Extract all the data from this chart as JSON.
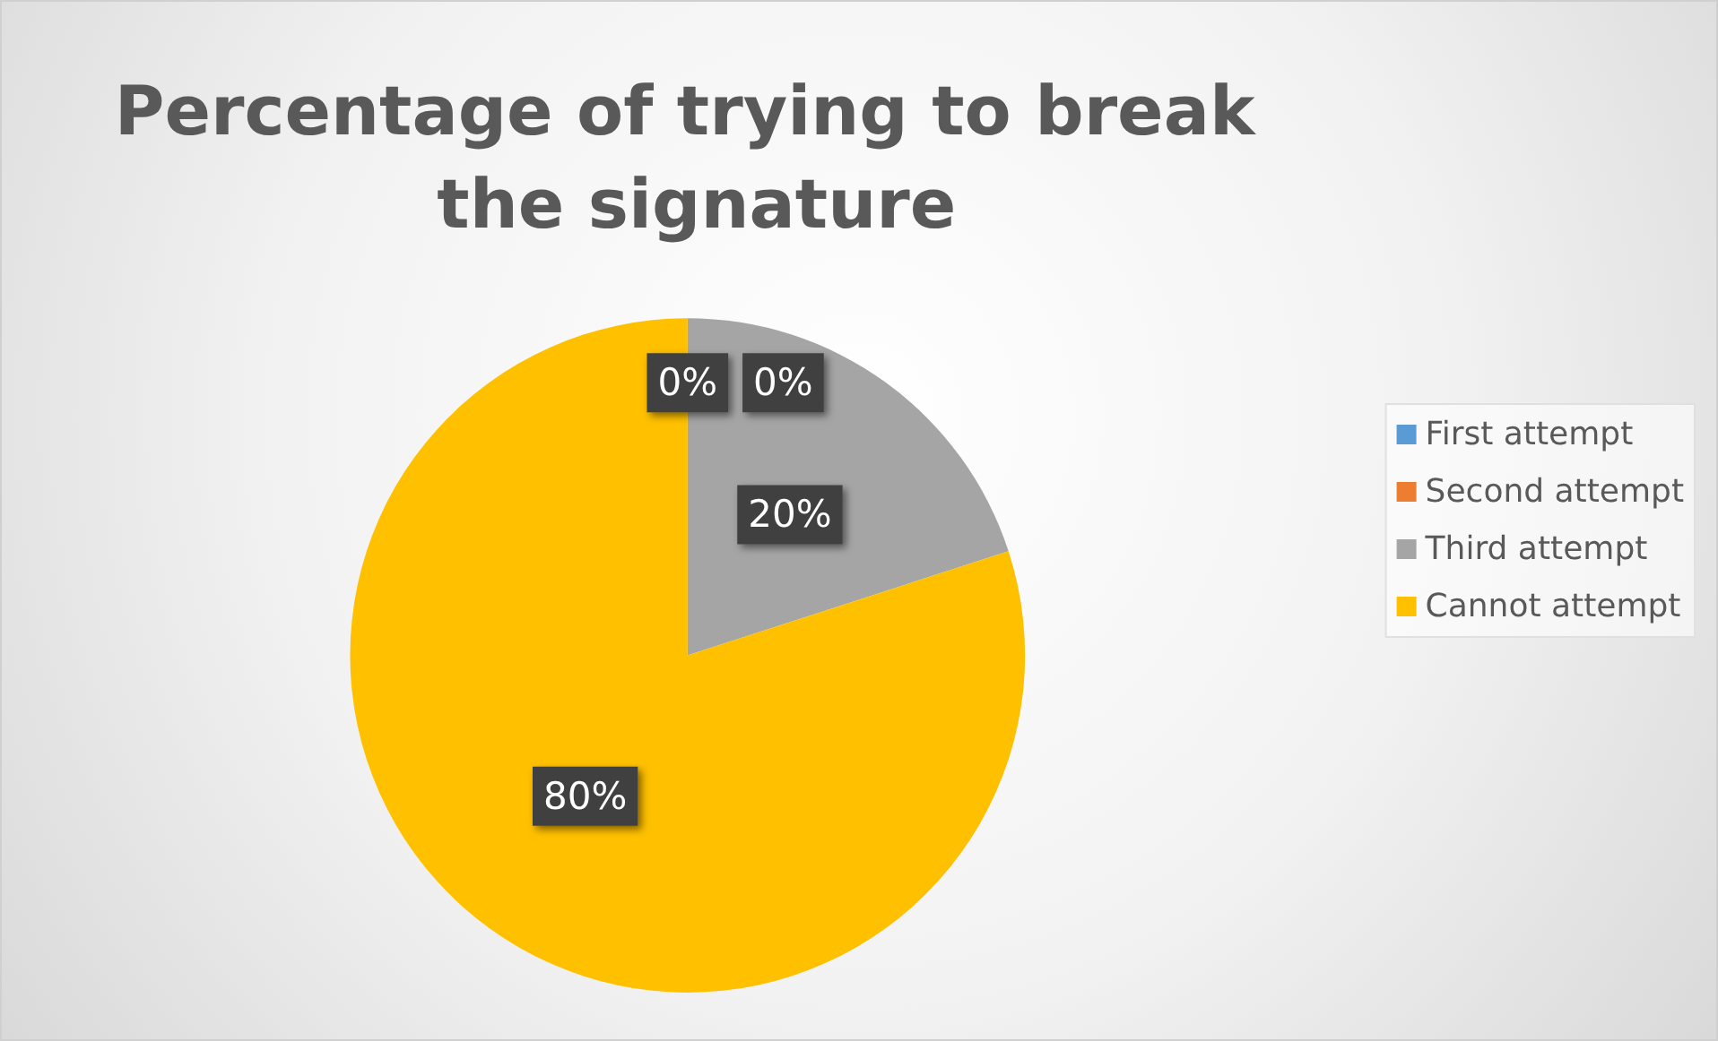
{
  "chart_data": {
    "type": "pie",
    "title": "Percentage of trying to break the signature",
    "categories": [
      "First attempt",
      "Second attempt",
      "Third attempt",
      "Cannot attempt"
    ],
    "values": [
      0,
      0,
      20,
      80
    ],
    "colors": [
      "#5b9bd5",
      "#ed7d31",
      "#a5a5a5",
      "#ffc000"
    ],
    "value_labels": [
      "0%",
      "0%",
      "20%",
      "80%"
    ],
    "legend": "right"
  }
}
